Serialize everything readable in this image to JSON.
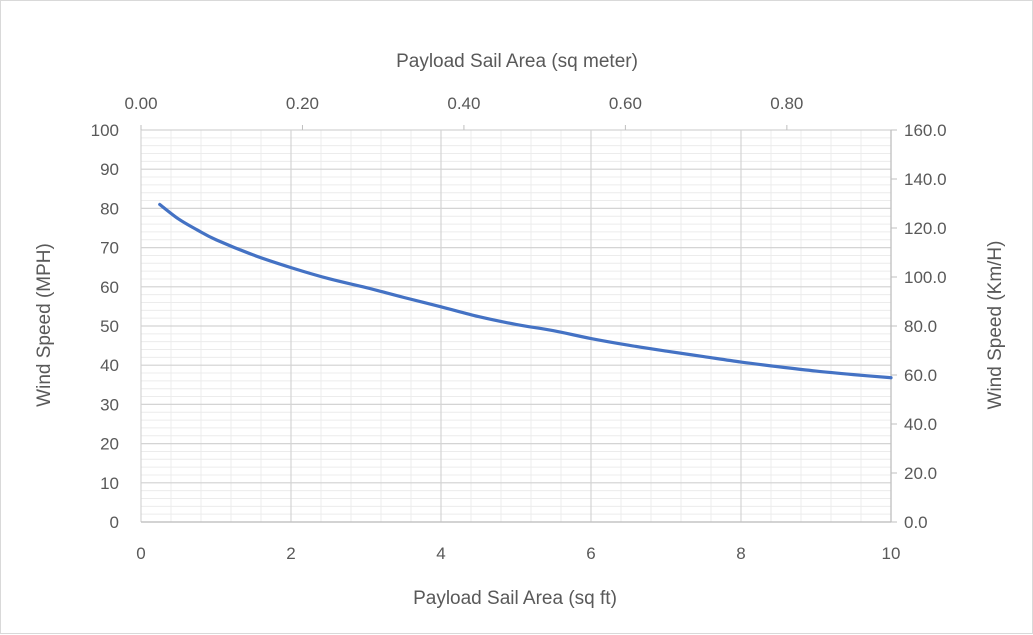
{
  "chart_data": {
    "type": "line",
    "title": "",
    "x_bottom": {
      "label": "Payload Sail Area (sq ft)",
      "range": [
        0,
        10
      ],
      "ticks": [
        "0",
        "2",
        "4",
        "6",
        "8",
        "10"
      ]
    },
    "x_top": {
      "label": "Payload Sail Area (sq meter)",
      "range": [
        0,
        0.929
      ],
      "ticks": [
        "0.00",
        "0.20",
        "0.40",
        "0.60",
        "0.80"
      ]
    },
    "y_left": {
      "label": "Wind Speed (MPH)",
      "range": [
        0,
        100
      ],
      "ticks": [
        "0",
        "10",
        "20",
        "30",
        "40",
        "50",
        "60",
        "70",
        "80",
        "90",
        "100"
      ]
    },
    "y_right": {
      "label": "Wind Speed (Km/H)",
      "range": [
        0,
        160
      ],
      "ticks": [
        "0.0",
        "20.0",
        "40.0",
        "60.0",
        "80.0",
        "100.0",
        "120.0",
        "140.0",
        "160.0"
      ]
    },
    "grid": {
      "major": true,
      "minor": true
    },
    "legend": "none",
    "series": [
      {
        "color": "#4472c4",
        "x": [
          0.25,
          0.5,
          0.75,
          1,
          1.5,
          2,
          2.5,
          3,
          3.5,
          4,
          4.5,
          5,
          5.5,
          6,
          6.5,
          7,
          7.5,
          8,
          8.5,
          9,
          9.5,
          10
        ],
        "y": [
          81,
          77.3,
          74.5,
          72,
          68.1,
          64.9,
          62.1,
          59.8,
          57.3,
          54.9,
          52.4,
          50.4,
          48.8,
          46.8,
          45.1,
          43.6,
          42.2,
          40.8,
          39.6,
          38.5,
          37.6,
          36.8
        ]
      }
    ]
  }
}
